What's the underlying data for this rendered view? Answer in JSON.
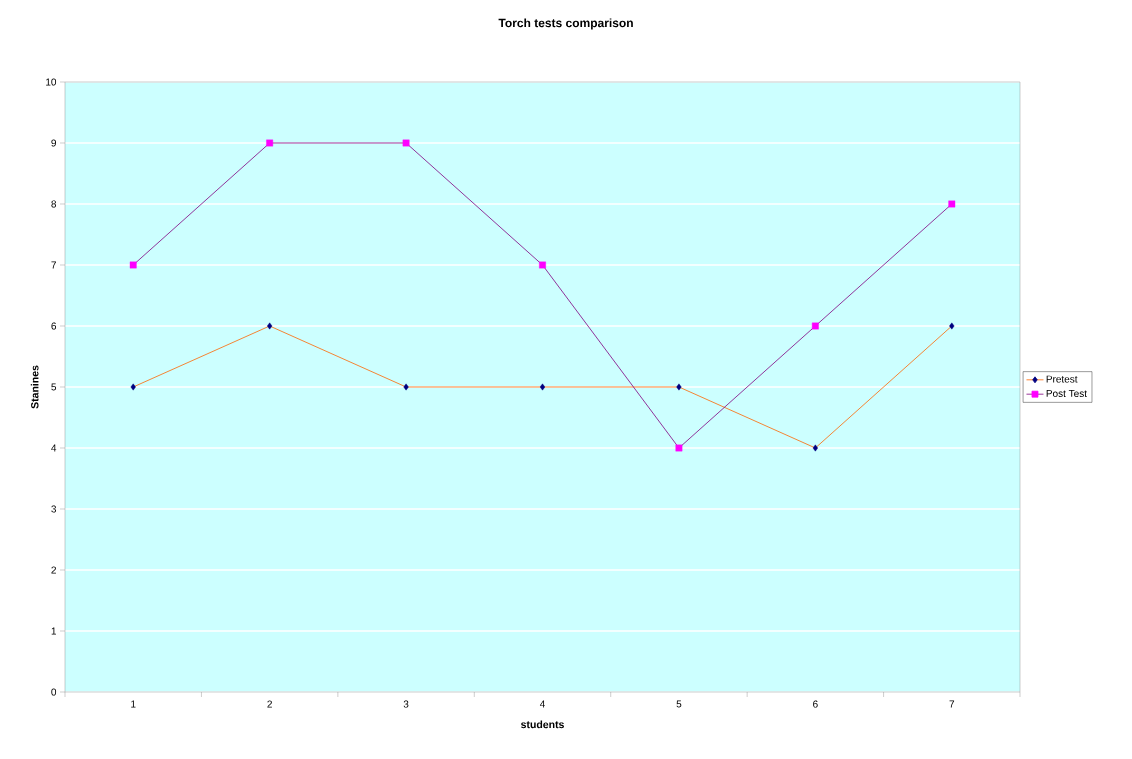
{
  "chart_data": {
    "type": "line",
    "title": "Torch tests comparison",
    "xlabel": "students",
    "ylabel": "Stanines",
    "categories": [
      "1",
      "2",
      "3",
      "4",
      "5",
      "6",
      "7"
    ],
    "series": [
      {
        "name": "Pretest",
        "color": "#ff6600",
        "colors": [
          "#000080",
          "#000080",
          "#000080",
          "#000080",
          "#000080",
          "#000080",
          "#000080"
        ],
        "marker": "diamond",
        "values": [
          5,
          6,
          5,
          5,
          5,
          4,
          6
        ]
      },
      {
        "name": "Post Test",
        "color": "#800080",
        "colors": [
          "#ff00ff",
          "#ff00ff",
          "#ff00ff",
          "#ff00ff",
          "#ff00ff",
          "#ff00ff",
          "#ff00ff"
        ],
        "marker": "square",
        "values": [
          7,
          9,
          9,
          7,
          4,
          6,
          8
        ]
      }
    ],
    "ylim": [
      0,
      10
    ],
    "yticks": [
      0,
      1,
      2,
      3,
      4,
      5,
      6,
      7,
      8,
      9,
      10
    ],
    "grid": "y",
    "legend": "right"
  }
}
